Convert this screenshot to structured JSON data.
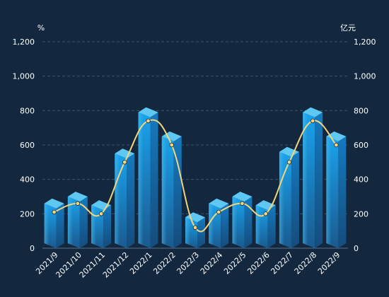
{
  "chart_data": {
    "type": "bar",
    "categories": [
      "2021/9",
      "2021/10",
      "2021/11",
      "2021/12",
      "2022/1",
      "2022/2",
      "2022/3",
      "2022/4",
      "2022/5",
      "2022/6",
      "2022/7",
      "2022/8",
      "2022/9"
    ],
    "series": [
      {
        "type": "bar",
        "axis": "left",
        "values": [
          260,
          300,
          250,
          550,
          790,
          650,
          180,
          260,
          300,
          250,
          560,
          790,
          650
        ]
      },
      {
        "type": "line",
        "axis": "right",
        "smooth": true,
        "values": [
          210,
          260,
          200,
          500,
          740,
          600,
          120,
          210,
          260,
          200,
          500,
          740,
          600
        ]
      }
    ],
    "left_axis": {
      "unit": "%",
      "ticks": [
        "0",
        "200",
        "400",
        "600",
        "800",
        "1,000",
        "1,200"
      ],
      "ylim": [
        0,
        1200
      ]
    },
    "right_axis": {
      "unit": "亿元",
      "ticks": [
        "0",
        "200",
        "400",
        "600",
        "800",
        "1,000",
        "1,200"
      ],
      "ylim": [
        0,
        1200
      ]
    },
    "grid": "dashed horizontal",
    "colors": {
      "background": "#13283f",
      "bar_front_top": "#1a9be6",
      "bar_front_bottom": "#185c92",
      "bar_side": "#1670b4",
      "bar_top": "#5ec8f2",
      "line": "#f3d57e",
      "text": "#ffffff",
      "grid": "#3d546b"
    }
  }
}
